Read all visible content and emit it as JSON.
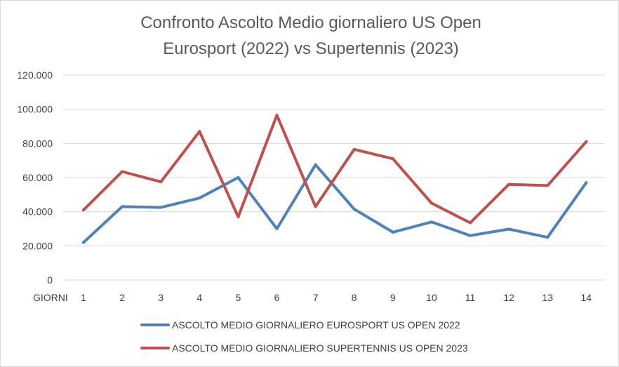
{
  "chart_data": {
    "type": "line",
    "title_lines": [
      "Confronto Ascolto Medio giornaliero US Open",
      "Eurosport (2022) vs Supertennis (2023)"
    ],
    "xlabel": "GIORNI",
    "ylabel": "",
    "categories": [
      "1",
      "2",
      "3",
      "4",
      "5",
      "6",
      "7",
      "8",
      "9",
      "10",
      "11",
      "12",
      "13",
      "14"
    ],
    "y_ticks": [
      0,
      20000,
      40000,
      60000,
      80000,
      100000,
      120000
    ],
    "y_tick_labels": [
      "0",
      "20.000",
      "40.000",
      "60.000",
      "80.000",
      "100.000",
      "120.000"
    ],
    "ylim": [
      0,
      120000
    ],
    "grid": true,
    "legend_position": "bottom",
    "series": [
      {
        "name": "ASCOLTO MEDIO GIORNALIERO EUROSPORT US OPEN 2022",
        "color": "#4f81bd",
        "values": [
          22000,
          43000,
          42500,
          48000,
          60000,
          30000,
          67500,
          41500,
          28000,
          34000,
          26000,
          29800,
          25000,
          57000
        ]
      },
      {
        "name": "ASCOLTO MEDIO GIORNALIERO SUPERTENNIS US OPEN 2023",
        "color": "#c0504d",
        "values": [
          41000,
          63500,
          57500,
          87000,
          37000,
          96500,
          43000,
          76500,
          71000,
          45000,
          33500,
          56000,
          55300,
          81000
        ]
      }
    ]
  }
}
